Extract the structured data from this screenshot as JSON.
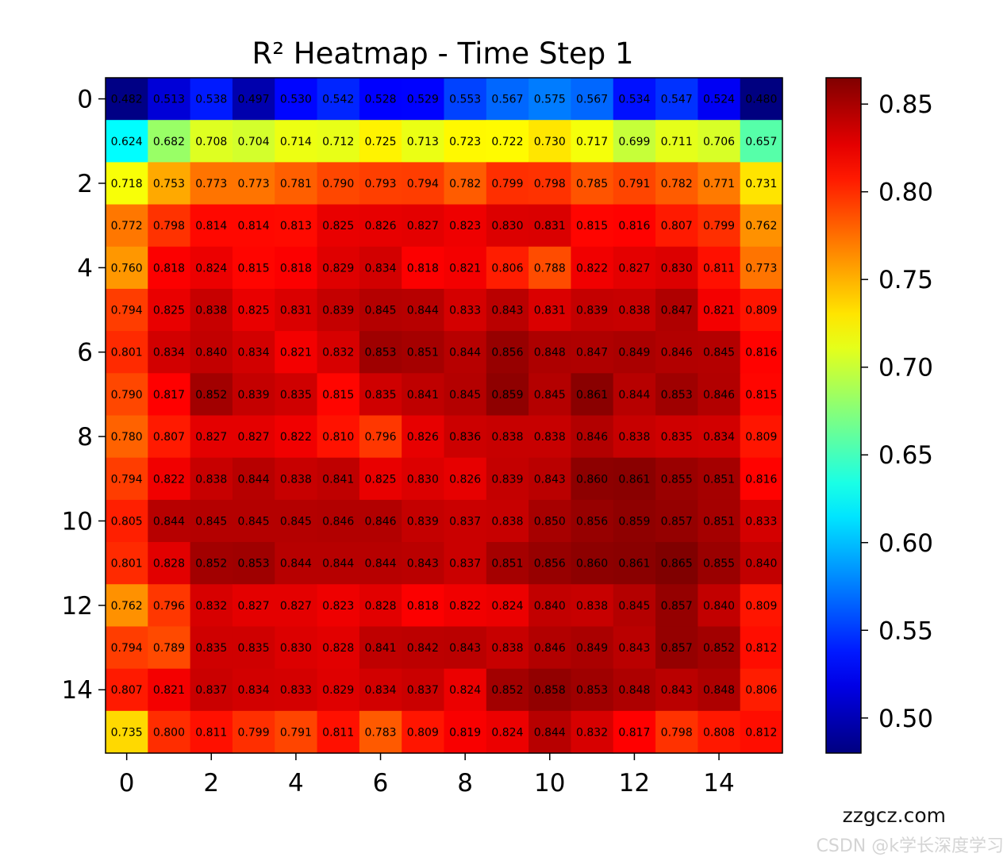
{
  "chart_data": {
    "type": "heatmap",
    "title": "R² Heatmap - Time Step 1",
    "xlabel": "",
    "ylabel": "",
    "colormap": "jet",
    "color_range": [
      0.48,
      0.865
    ],
    "x_ticks": [
      "0",
      "2",
      "4",
      "6",
      "8",
      "10",
      "12",
      "14"
    ],
    "y_ticks": [
      "0",
      "2",
      "4",
      "6",
      "8",
      "10",
      "12",
      "14"
    ],
    "colorbar_ticks": [
      "0.50",
      "0.55",
      "0.60",
      "0.65",
      "0.70",
      "0.75",
      "0.80",
      "0.85"
    ],
    "grid": false,
    "values": [
      [
        0.482,
        0.513,
        0.538,
        0.497,
        0.53,
        0.542,
        0.528,
        0.529,
        0.553,
        0.567,
        0.575,
        0.567,
        0.534,
        0.547,
        0.524,
        0.48
      ],
      [
        0.624,
        0.682,
        0.708,
        0.704,
        0.714,
        0.712,
        0.725,
        0.713,
        0.723,
        0.722,
        0.73,
        0.717,
        0.699,
        0.711,
        0.706,
        0.657
      ],
      [
        0.718,
        0.753,
        0.773,
        0.773,
        0.781,
        0.79,
        0.793,
        0.794,
        0.782,
        0.799,
        0.798,
        0.785,
        0.791,
        0.782,
        0.771,
        0.731
      ],
      [
        0.772,
        0.798,
        0.814,
        0.814,
        0.813,
        0.825,
        0.826,
        0.827,
        0.823,
        0.83,
        0.831,
        0.815,
        0.816,
        0.807,
        0.799,
        0.762
      ],
      [
        0.76,
        0.818,
        0.824,
        0.815,
        0.818,
        0.829,
        0.834,
        0.818,
        0.821,
        0.806,
        0.788,
        0.822,
        0.827,
        0.83,
        0.811,
        0.773
      ],
      [
        0.794,
        0.825,
        0.838,
        0.825,
        0.831,
        0.839,
        0.845,
        0.844,
        0.833,
        0.843,
        0.831,
        0.839,
        0.838,
        0.847,
        0.821,
        0.809
      ],
      [
        0.801,
        0.834,
        0.84,
        0.834,
        0.821,
        0.832,
        0.853,
        0.851,
        0.844,
        0.856,
        0.848,
        0.847,
        0.849,
        0.846,
        0.845,
        0.816
      ],
      [
        0.79,
        0.817,
        0.852,
        0.839,
        0.835,
        0.815,
        0.835,
        0.841,
        0.845,
        0.859,
        0.845,
        0.861,
        0.844,
        0.853,
        0.846,
        0.815
      ],
      [
        0.78,
        0.807,
        0.827,
        0.827,
        0.822,
        0.81,
        0.796,
        0.826,
        0.836,
        0.838,
        0.838,
        0.846,
        0.838,
        0.835,
        0.834,
        0.809
      ],
      [
        0.794,
        0.822,
        0.838,
        0.844,
        0.838,
        0.841,
        0.825,
        0.83,
        0.826,
        0.839,
        0.843,
        0.86,
        0.861,
        0.855,
        0.851,
        0.816
      ],
      [
        0.805,
        0.844,
        0.845,
        0.845,
        0.845,
        0.846,
        0.846,
        0.839,
        0.837,
        0.838,
        0.85,
        0.856,
        0.859,
        0.857,
        0.851,
        0.833
      ],
      [
        0.801,
        0.828,
        0.852,
        0.853,
        0.844,
        0.844,
        0.844,
        0.843,
        0.837,
        0.851,
        0.856,
        0.86,
        0.861,
        0.865,
        0.855,
        0.84
      ],
      [
        0.762,
        0.796,
        0.832,
        0.827,
        0.827,
        0.823,
        0.828,
        0.818,
        0.822,
        0.824,
        0.84,
        0.838,
        0.845,
        0.857,
        0.84,
        0.809
      ],
      [
        0.794,
        0.789,
        0.835,
        0.835,
        0.83,
        0.828,
        0.841,
        0.842,
        0.843,
        0.838,
        0.846,
        0.849,
        0.843,
        0.857,
        0.852,
        0.812
      ],
      [
        0.807,
        0.821,
        0.837,
        0.834,
        0.833,
        0.829,
        0.834,
        0.837,
        0.824,
        0.852,
        0.858,
        0.853,
        0.848,
        0.843,
        0.848,
        0.806
      ],
      [
        0.735,
        0.8,
        0.811,
        0.799,
        0.791,
        0.811,
        0.783,
        0.809,
        0.819,
        0.824,
        0.844,
        0.832,
        0.817,
        0.798,
        0.808,
        0.812
      ]
    ]
  },
  "watermark": {
    "site": "zzgcz.com",
    "author": "CSDN @k学长深度学习"
  }
}
